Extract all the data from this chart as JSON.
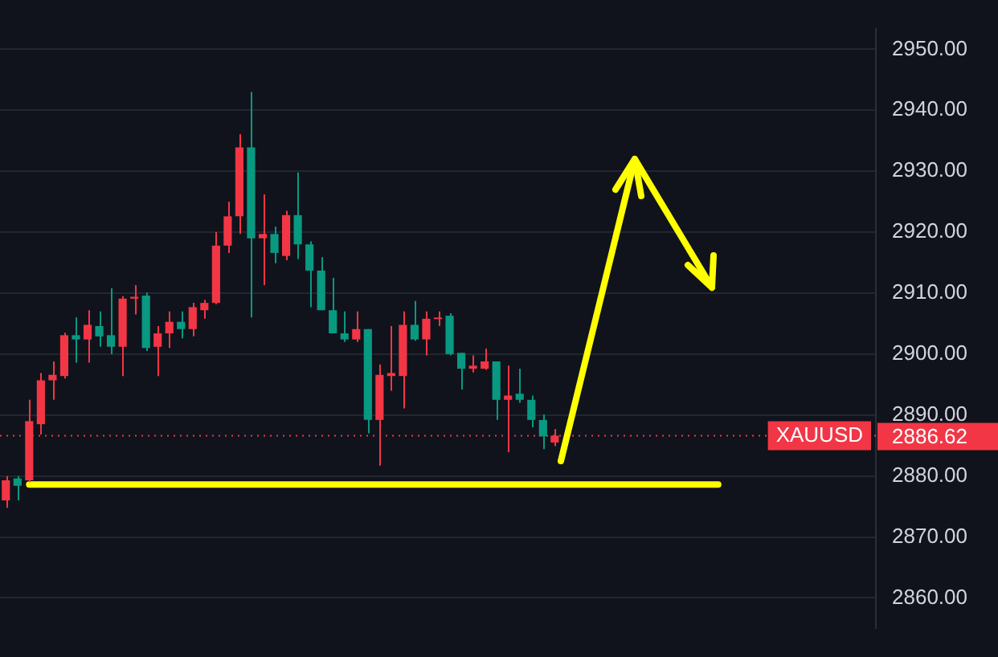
{
  "chart_data": {
    "type": "candlestick",
    "categories": [
      null,
      null,
      null,
      null,
      null,
      null,
      null,
      null,
      null,
      null,
      null,
      null,
      null,
      null,
      null,
      null,
      null,
      null,
      null,
      null,
      null,
      null,
      null,
      null,
      null,
      null,
      null,
      null,
      null,
      null,
      null,
      null,
      null,
      null,
      null,
      null,
      null,
      null,
      null,
      null,
      null,
      null,
      null,
      null,
      null,
      null,
      null,
      null,
      null,
      null,
      null,
      null,
      null,
      null,
      null,
      null,
      null,
      null,
      null,
      null,
      null,
      null,
      null,
      null,
      null,
      null,
      null,
      null,
      null,
      null,
      null,
      null,
      null,
      null,
      null
    ],
    "ohlc": [
      [
        2876.0,
        2880.0,
        2874.8,
        2879.3
      ],
      [
        2879.6,
        2880.0,
        2876.0,
        2878.4
      ],
      [
        2879.3,
        2892.5,
        2879.0,
        2889.0
      ],
      [
        2888.5,
        2896.9,
        2886.8,
        2895.7
      ],
      [
        2895.7,
        2898.8,
        2892.5,
        2896.6
      ],
      [
        2896.4,
        2903.5,
        2896.0,
        2903.1
      ],
      [
        2903.1,
        2906.0,
        2898.6,
        2902.4
      ],
      [
        2902.4,
        2907.2,
        2898.6,
        2904.8
      ],
      [
        2904.6,
        2907.0,
        2901.2,
        2902.9
      ],
      [
        2903.1,
        2910.8,
        2900.0,
        2901.2
      ],
      [
        2901.2,
        2909.5,
        2896.4,
        2909.1
      ],
      [
        2909.1,
        2911.3,
        2906.5,
        2909.4
      ],
      [
        2909.6,
        2910.1,
        2900.5,
        2901.0
      ],
      [
        2901.2,
        2904.6,
        2896.4,
        2903.4
      ],
      [
        2903.4,
        2907.0,
        2901.0,
        2905.3
      ],
      [
        2905.3,
        2907.0,
        2902.6,
        2904.1
      ],
      [
        2904.1,
        2908.4,
        2902.9,
        2907.7
      ],
      [
        2907.2,
        2908.9,
        2905.8,
        2908.4
      ],
      [
        2908.4,
        2920.0,
        2908.2,
        2917.8
      ],
      [
        2917.8,
        2925.0,
        2916.6,
        2922.6
      ],
      [
        2922.6,
        2936.1,
        2919.7,
        2933.9
      ],
      [
        2933.9,
        2943.0,
        2906.0,
        2919.0
      ],
      [
        2919.0,
        2926.2,
        2911.3,
        2919.7
      ],
      [
        2919.7,
        2920.9,
        2914.9,
        2916.6
      ],
      [
        2916.1,
        2923.5,
        2915.4,
        2922.8
      ],
      [
        2922.8,
        2929.8,
        2915.6,
        2918.0
      ],
      [
        2918.0,
        2918.5,
        2907.7,
        2913.7
      ],
      [
        2913.7,
        2915.9,
        2907.2,
        2907.2
      ],
      [
        2907.2,
        2912.5,
        2903.4,
        2903.4
      ],
      [
        2903.4,
        2907.0,
        2902.0,
        2902.4
      ],
      [
        2902.4,
        2907.0,
        2902.0,
        2904.1
      ],
      [
        2904.1,
        2904.1,
        2887.0,
        2889.2
      ],
      [
        2889.2,
        2898.3,
        2881.7,
        2896.6
      ],
      [
        2896.4,
        2904.6,
        2894.0,
        2896.9
      ],
      [
        2896.4,
        2907.0,
        2891.1,
        2904.8
      ],
      [
        2904.8,
        2908.7,
        2902.2,
        2902.4
      ],
      [
        2902.4,
        2907.0,
        2899.8,
        2905.8
      ],
      [
        2905.8,
        2907.0,
        2904.6,
        2906.0
      ],
      [
        2906.3,
        2906.7,
        2899.8,
        2900.0
      ],
      [
        2900.2,
        2900.2,
        2894.2,
        2897.6
      ],
      [
        2897.6,
        2899.8,
        2897.0,
        2898.1
      ],
      [
        2897.6,
        2900.9,
        2897.4,
        2898.8
      ],
      [
        2898.8,
        2898.8,
        2889.2,
        2892.5
      ],
      [
        2892.5,
        2898.1,
        2883.9,
        2893.2
      ],
      [
        2893.5,
        2897.6,
        2892.0,
        2892.5
      ],
      [
        2892.5,
        2893.2,
        2888.0,
        2889.2
      ],
      [
        2889.2,
        2890.1,
        2884.4,
        2886.5
      ],
      [
        2885.5,
        2887.7,
        2884.9,
        2886.62
      ],
      null,
      null,
      null,
      null,
      null,
      null,
      null,
      null,
      null,
      null,
      null,
      null,
      null,
      null,
      null,
      null,
      null,
      null,
      null,
      null,
      null,
      null,
      null,
      null,
      null,
      null,
      null
    ],
    "colors": [
      "#f23645",
      "#089981",
      "#f23645",
      "#f23645",
      "#f23645",
      "#f23645",
      "#089981",
      "#f23645",
      "#089981",
      "#089981",
      "#f23645",
      "#f23645",
      "#089981",
      "#f23645",
      "#f23645",
      "#089981",
      "#f23645",
      "#f23645",
      "#f23645",
      "#f23645",
      "#f23645",
      "#089981",
      "#f23645",
      "#089981",
      "#f23645",
      "#089981",
      "#089981",
      "#089981",
      "#089981",
      "#089981",
      "#f23645",
      "#089981",
      "#f23645",
      "#f23645",
      "#f23645",
      "#089981",
      "#f23645",
      "#f23645",
      "#089981",
      "#089981",
      "#f23645",
      "#f23645",
      "#089981",
      "#f23645",
      "#089981",
      "#089981",
      "#089981",
      "#f23645",
      null,
      null,
      null,
      null,
      null,
      null,
      null,
      null,
      null,
      null,
      null,
      null,
      null,
      null,
      null,
      null,
      null,
      null,
      null,
      null,
      null,
      null,
      null,
      null,
      null,
      null,
      null
    ],
    "series": [
      {
        "type": "line",
        "color": "#ffff00",
        "values": [
          null,
          null,
          2878.6,
          null,
          null,
          null,
          null,
          null,
          null,
          null,
          null,
          null,
          null,
          null,
          null,
          null,
          null,
          null,
          null,
          null,
          null,
          null,
          null,
          null,
          null,
          null,
          null,
          null,
          null,
          null,
          null,
          null,
          null,
          null,
          null,
          null,
          null,
          null,
          null,
          null,
          null,
          null,
          null,
          null,
          null,
          null,
          null,
          null,
          null,
          null,
          null,
          null,
          null,
          null,
          null,
          null,
          null,
          null,
          null,
          null,
          null,
          2878.6,
          null,
          null,
          null,
          null,
          null,
          null,
          null,
          null,
          null,
          null,
          null,
          null,
          null
        ]
      }
    ],
    "ylim": [
      2855.0,
      2953.4
    ],
    "yticks": [
      {
        "value": 2860,
        "label": "2860.00"
      },
      {
        "value": 2870,
        "label": "2870.00"
      },
      {
        "value": 2880,
        "label": "2880.00"
      },
      {
        "value": 2890,
        "label": "2890.00"
      },
      {
        "value": 2900,
        "label": "2900.00"
      },
      {
        "value": 2910,
        "label": "2910.00"
      },
      {
        "value": 2920,
        "label": "2920.00"
      },
      {
        "value": 2930,
        "label": "2930.00"
      },
      {
        "value": 2940,
        "label": "2940.00"
      },
      {
        "value": 2950,
        "label": "2950.00"
      }
    ],
    "ref_lines": [
      {
        "axis": "y",
        "value": 2886.62,
        "label": "XAUUSD",
        "color": "#f23645",
        "line_style": "dotted"
      }
    ],
    "annotations": [
      "2886.62"
    ],
    "grid": "y",
    "legend": false,
    "tick_labels": "y"
  }
}
